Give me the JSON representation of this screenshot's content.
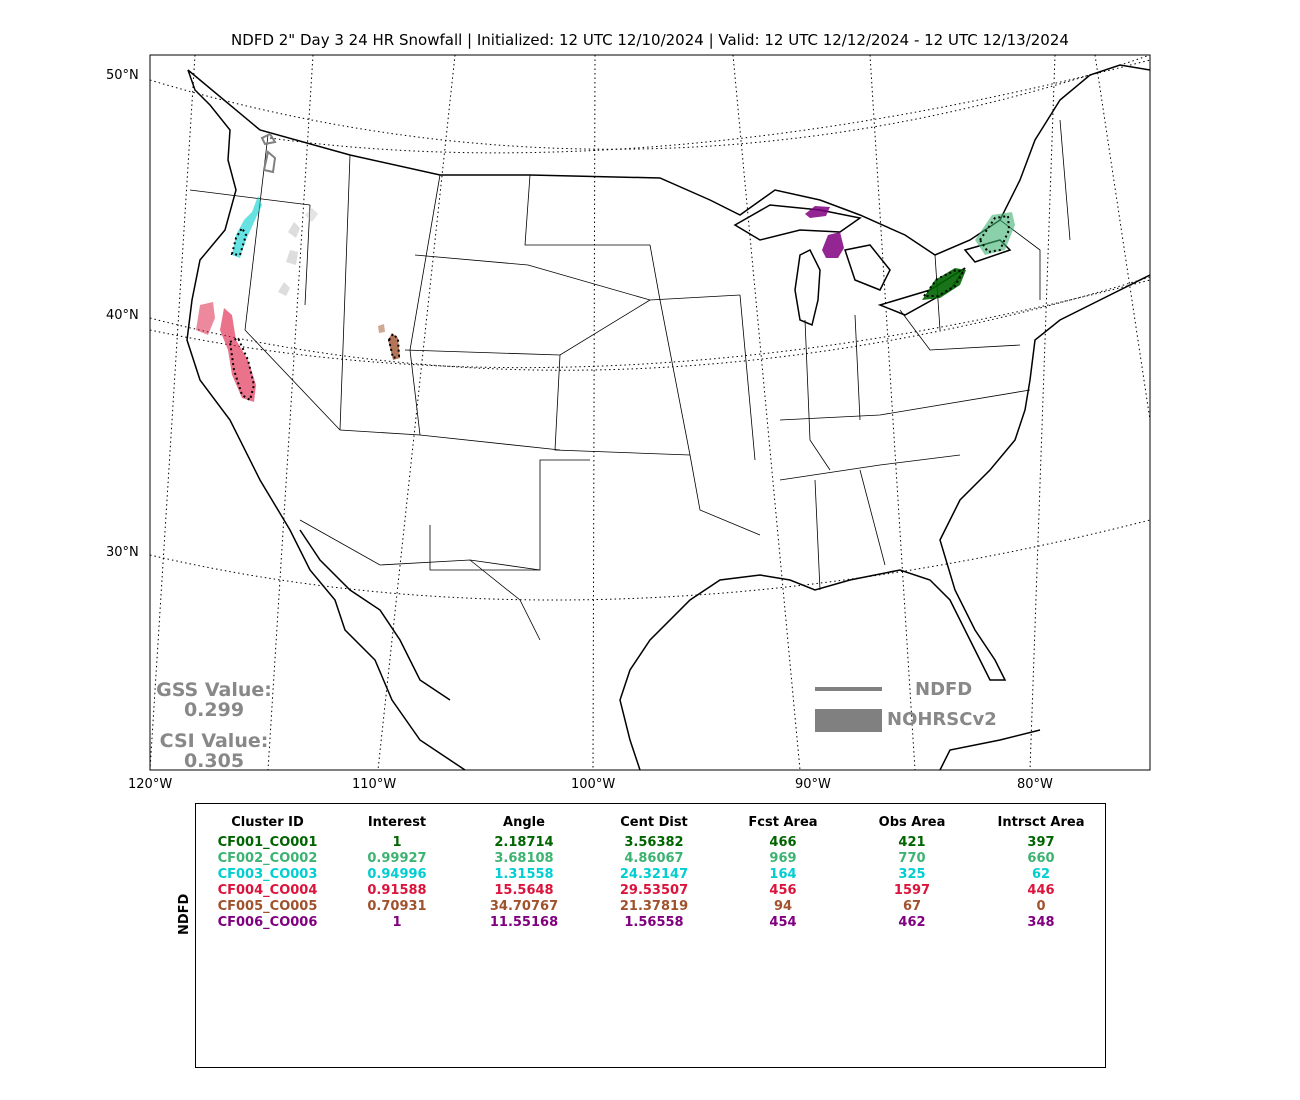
{
  "title": "NDFD 2\" Day 3 24 HR Snowfall | Initialized: 12 UTC 12/10/2024 | Valid: 12 UTC 12/12/2024 - 12 UTC 12/13/2024",
  "map": {
    "lat_labels": [
      "50°N",
      "40°N",
      "30°N"
    ],
    "lon_labels": [
      "120°W",
      "110°W",
      "100°W",
      "90°W",
      "80°W"
    ]
  },
  "scores": {
    "gss_label": "GSS Value:",
    "gss_value": "0.299",
    "csi_label": "CSI Value:",
    "csi_value": "0.305"
  },
  "legend": {
    "line_label": "NDFD",
    "patch_label": "NOHRSCv2",
    "color": "#808080"
  },
  "table": {
    "ylabel": "NDFD",
    "headers": [
      "Cluster ID",
      "Interest",
      "Angle",
      "Cent Dist",
      "Fcst Area",
      "Obs Area",
      "Intrsct Area"
    ],
    "rows": [
      {
        "color": "#006400",
        "cells": [
          "CF001_CO001",
          "1",
          "2.18714",
          "3.56382",
          "466",
          "421",
          "397"
        ]
      },
      {
        "color": "#3CB371",
        "cells": [
          "CF002_CO002",
          "0.99927",
          "3.68108",
          "4.86067",
          "969",
          "770",
          "660"
        ]
      },
      {
        "color": "#00CED1",
        "cells": [
          "CF003_CO003",
          "0.94996",
          "1.31558",
          "24.32147",
          "164",
          "325",
          "62"
        ]
      },
      {
        "color": "#DC143C",
        "cells": [
          "CF004_CO004",
          "0.91588",
          "15.5648",
          "29.53507",
          "456",
          "1597",
          "446"
        ]
      },
      {
        "color": "#A0522D",
        "cells": [
          "CF005_CO005",
          "0.70931",
          "34.70767",
          "21.37819",
          "94",
          "67",
          "0"
        ]
      },
      {
        "color": "#800080",
        "cells": [
          "CF006_CO006",
          "1",
          "11.55168",
          "1.56558",
          "454",
          "462",
          "348"
        ]
      }
    ]
  }
}
